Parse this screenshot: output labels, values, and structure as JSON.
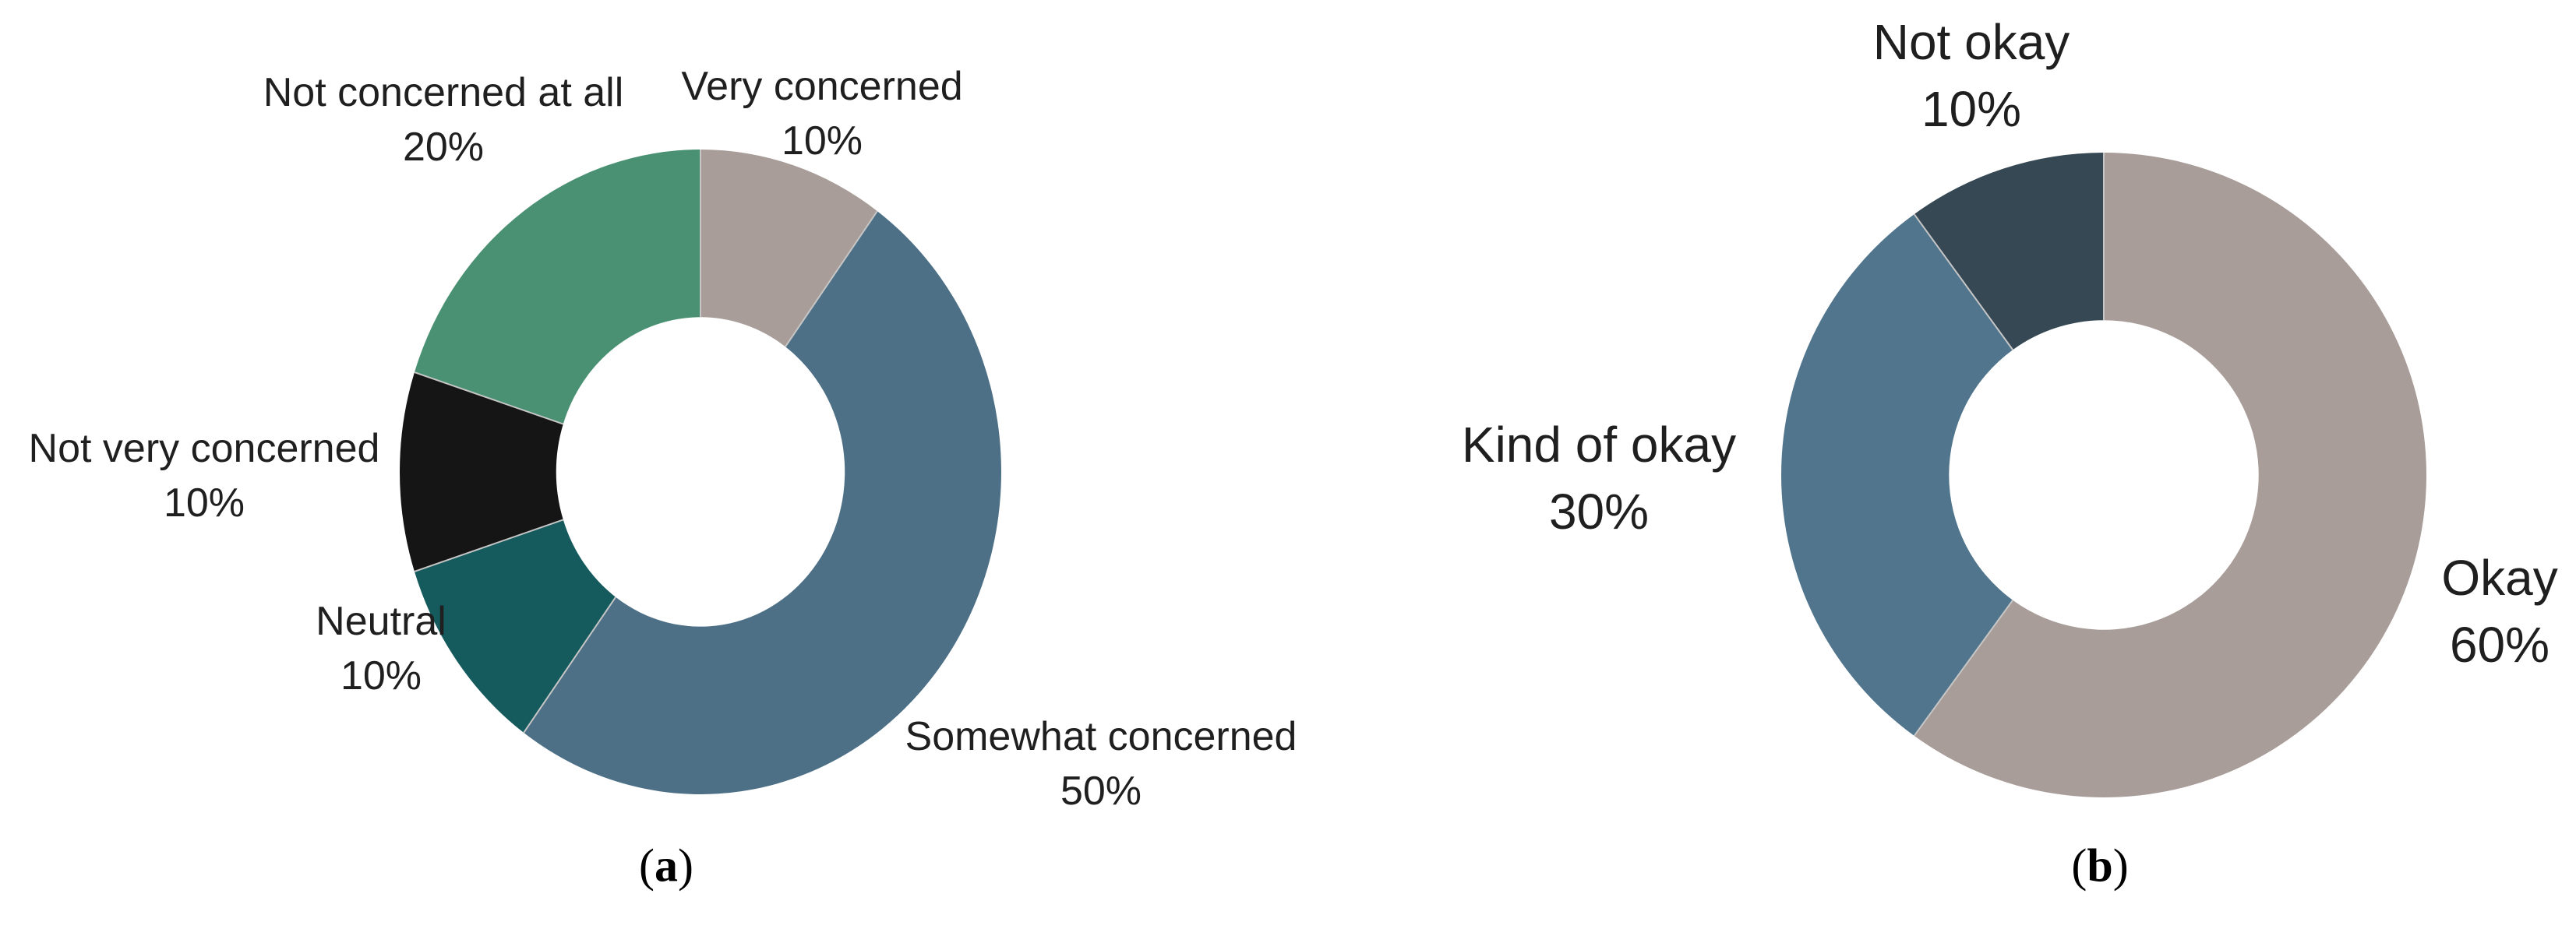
{
  "figure": {
    "background": "#ffffff",
    "text_color": "#1f1f1f",
    "separator_color": "#c6c6c6"
  },
  "captions": {
    "open": "(",
    "a": "a",
    "b": "b",
    "close": ")"
  },
  "chart_data": [
    {
      "type": "pie",
      "subtype": "donut",
      "panel": "a",
      "title": "(a)",
      "start_angle_deg": 0,
      "direction": "clockwise",
      "hole_ratio": 0.48,
      "legend_position": "outside-labels",
      "slices": [
        {
          "label": "Very concerned",
          "value_pct": 10,
          "pct_label": "10%",
          "color": "#a89d99"
        },
        {
          "label": "Somewhat concerned",
          "value_pct": 50,
          "pct_label": "50%",
          "color": "#4d7086"
        },
        {
          "label": "Neutral",
          "value_pct": 10,
          "pct_label": "10%",
          "color": "#155b5e"
        },
        {
          "label": "Not very concerned",
          "value_pct": 10,
          "pct_label": "10%",
          "color": "#151515"
        },
        {
          "label": "Not concerned at all",
          "value_pct": 20,
          "pct_label": "20%",
          "color": "#499172"
        }
      ]
    },
    {
      "type": "pie",
      "subtype": "donut",
      "panel": "b",
      "title": "(b)",
      "start_angle_deg": 0,
      "direction": "clockwise",
      "hole_ratio": 0.48,
      "legend_position": "outside-labels",
      "slices": [
        {
          "label": "Okay",
          "value_pct": 60,
          "pct_label": "60%",
          "color": "#a89d99"
        },
        {
          "label": "Kind of okay",
          "value_pct": 30,
          "pct_label": "30%",
          "color": "#50758c"
        },
        {
          "label": "Not okay",
          "value_pct": 10,
          "pct_label": "10%",
          "color": "#354854"
        }
      ]
    }
  ]
}
